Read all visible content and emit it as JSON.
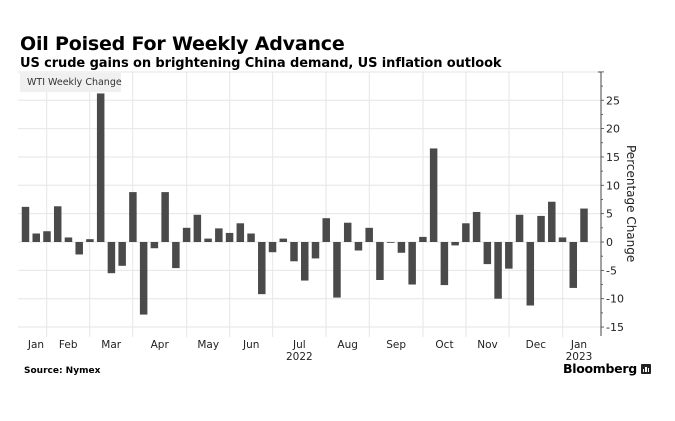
{
  "header": {
    "title": "Oil Poised For Weekly Advance",
    "subtitle": "US crude gains on brightening China demand, US inflation outlook"
  },
  "footer": {
    "source": "Source: Nymex",
    "brand": "Bloomberg",
    "brand_icon": "bloomberg-chart-icon"
  },
  "colors": {
    "bar": "#4a4a4a",
    "grid": "#e6e6e6",
    "axis": "#444444",
    "legend_bg": "#f0f0f0"
  },
  "chart_data": {
    "type": "bar",
    "title": "Oil Poised For Weekly Advance",
    "subtitle": "US crude gains on brightening China demand, US inflation outlook",
    "xlabel": "",
    "ylabel": "Percentage Change",
    "ylim": [
      -15,
      30
    ],
    "yticks": [
      25,
      20,
      15,
      10,
      5,
      0,
      -5,
      -10,
      -15
    ],
    "ytick_labels": [
      "25",
      "20",
      "15",
      "10",
      "5",
      "0",
      "-5",
      "-10",
      "-15"
    ],
    "y_axis_side": "right",
    "grid": true,
    "legend": {
      "placement": "top-left",
      "entries": [
        "WTI Weekly Change"
      ]
    },
    "x_month_labels": [
      "Jan",
      "Feb",
      "Mar",
      "Apr",
      "May",
      "Jun",
      "Jul",
      "Aug",
      "Sep",
      "Oct",
      "Nov",
      "Dec",
      "Jan"
    ],
    "x_year_labels": [
      {
        "month_index": 6,
        "label": "2022"
      },
      {
        "month_index": 12,
        "label": "2023"
      }
    ],
    "series": [
      {
        "name": "WTI Weekly Change",
        "values": [
          6.2,
          1.5,
          1.9,
          6.3,
          0.8,
          -2.2,
          0.5,
          26.2,
          -5.5,
          -4.2,
          8.8,
          -12.8,
          -1.1,
          8.8,
          -4.6,
          2.5,
          4.8,
          0.6,
          2.4,
          1.6,
          3.3,
          1.5,
          -9.2,
          -1.8,
          0.6,
          -3.4,
          -6.8,
          -2.9,
          4.2,
          -9.8,
          3.4,
          -1.5,
          2.5,
          -6.7,
          -0.1,
          -1.9,
          -7.5,
          0.9,
          16.5,
          -7.6,
          -0.6,
          3.3,
          5.3,
          -3.9,
          -10.0,
          -4.7,
          4.8,
          -11.2,
          4.6,
          7.1,
          0.8,
          -8.1,
          5.9
        ]
      }
    ]
  }
}
